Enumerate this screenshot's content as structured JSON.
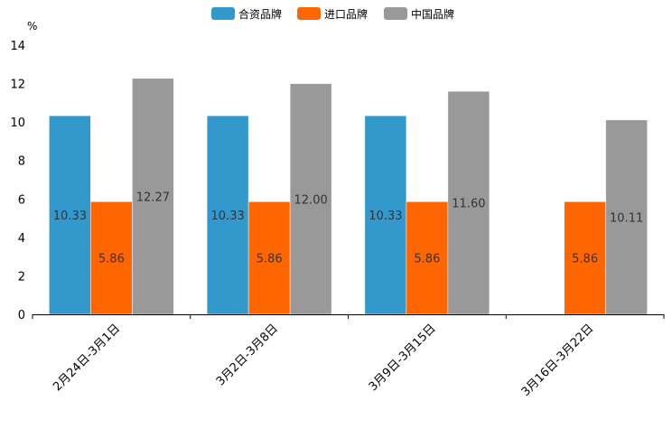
{
  "chart_data": {
    "type": "bar",
    "unit": "%",
    "categories": [
      "2月24日-3月1日",
      "3月2日-3月8日",
      "3月9日-3月15日",
      "3月16日-3月22日"
    ],
    "series": [
      {
        "name": "合资品牌",
        "color": "#3399CC",
        "values": [
          10.33,
          10.33,
          10.33,
          null
        ],
        "labels": [
          "10.33",
          "10.33",
          "10.33",
          null
        ]
      },
      {
        "name": "进口品牌",
        "color": "#FF6600",
        "values": [
          5.86,
          5.86,
          5.86,
          5.86
        ],
        "labels": [
          "5.86",
          "5.86",
          "5.86",
          "5.86"
        ]
      },
      {
        "name": "中国品牌",
        "color": "#999999",
        "values": [
          12.27,
          12.0,
          11.6,
          10.11
        ],
        "labels": [
          "12.27",
          "12.00",
          "11.60",
          "10.11"
        ]
      }
    ],
    "yticks": [
      "0",
      "2",
      "4",
      "6",
      "8",
      "10",
      "12",
      "14"
    ],
    "ylim": [
      0,
      14
    ],
    "legend_position": "top-center"
  }
}
